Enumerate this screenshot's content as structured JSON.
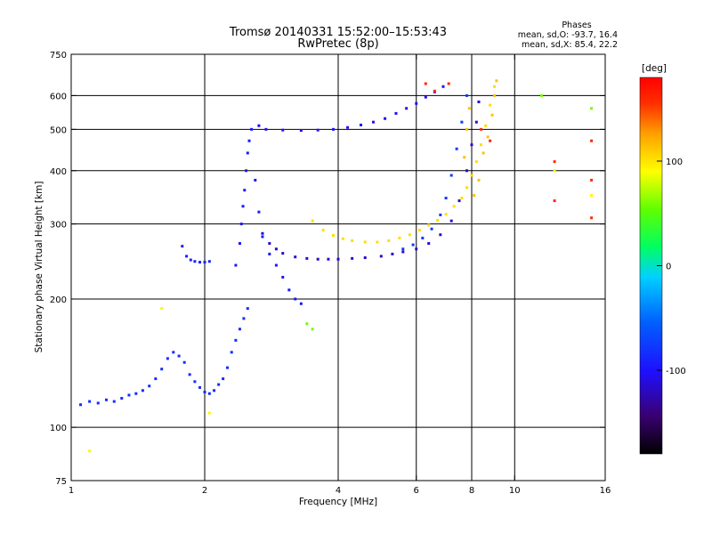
{
  "title_line1": "Tromsø 20140331 15:52:00–15:53:43",
  "title_line2": "RwPretec (8p)",
  "phase_info": {
    "heading": "Phases",
    "o_stats": "mean, sd,O: -93.7, 16.4",
    "x_stats": "mean, sd,X:  85.4, 22.2"
  },
  "chart_data": {
    "type": "scatter",
    "xlabel": "Frequency [MHz]",
    "ylabel": "Stationary phase Virtual Height [km]",
    "xscale": "log",
    "yscale": "log",
    "xlim": [
      1,
      16
    ],
    "ylim": [
      75,
      750
    ],
    "xticks": [
      1,
      2,
      4,
      6,
      8,
      10,
      16
    ],
    "yticks": [
      75,
      100,
      200,
      300,
      400,
      500,
      600,
      750
    ],
    "grid_x": [
      2,
      4,
      6,
      8,
      10
    ],
    "grid_y": [
      100,
      200,
      300,
      400,
      500,
      600
    ],
    "grid": true,
    "colorbar": {
      "label": "[deg]",
      "range": [
        -180,
        180
      ],
      "ticks": [
        100,
        0,
        -100
      ],
      "colors": [
        "#000000",
        "#3a0070",
        "#1e10ff",
        "#0060ff",
        "#00d0ff",
        "#00ff60",
        "#60ff00",
        "#ffff00",
        "#ffa000",
        "#ff3000",
        "#ff0000"
      ]
    },
    "series": [
      {
        "phase": -95,
        "points": [
          [
            1.05,
            113
          ],
          [
            1.1,
            115
          ],
          [
            1.15,
            114
          ],
          [
            1.2,
            116
          ],
          [
            1.25,
            115
          ],
          [
            1.3,
            117
          ],
          [
            1.35,
            119
          ],
          [
            1.4,
            120
          ],
          [
            1.45,
            122
          ],
          [
            1.5,
            125
          ],
          [
            1.55,
            130
          ],
          [
            1.6,
            137
          ],
          [
            1.65,
            145
          ],
          [
            1.7,
            150
          ],
          [
            1.75,
            147
          ],
          [
            1.8,
            142
          ],
          [
            1.85,
            133
          ],
          [
            1.9,
            128
          ],
          [
            1.95,
            124
          ],
          [
            2.0,
            121
          ],
          [
            2.05,
            120
          ],
          [
            2.1,
            122
          ],
          [
            2.15,
            126
          ],
          [
            2.2,
            130
          ],
          [
            2.25,
            138
          ],
          [
            2.3,
            150
          ],
          [
            2.35,
            160
          ],
          [
            2.4,
            170
          ],
          [
            2.45,
            180
          ],
          [
            2.5,
            190
          ]
        ]
      },
      {
        "phase": -100,
        "points": [
          [
            1.78,
            266
          ],
          [
            1.82,
            252
          ],
          [
            1.86,
            247
          ],
          [
            1.9,
            245
          ],
          [
            1.95,
            244
          ],
          [
            2.0,
            244
          ],
          [
            2.05,
            245
          ]
        ]
      },
      {
        "phase": -105,
        "points": [
          [
            2.35,
            240
          ],
          [
            2.4,
            270
          ],
          [
            2.42,
            300
          ],
          [
            2.44,
            330
          ],
          [
            2.46,
            360
          ],
          [
            2.48,
            400
          ],
          [
            2.5,
            440
          ],
          [
            2.52,
            470
          ],
          [
            2.55,
            500
          ],
          [
            2.6,
            380
          ],
          [
            2.65,
            320
          ],
          [
            2.7,
            280
          ],
          [
            2.8,
            255
          ],
          [
            2.9,
            240
          ],
          [
            3.0,
            225
          ],
          [
            3.1,
            210
          ],
          [
            3.2,
            200
          ],
          [
            3.3,
            195
          ]
        ]
      },
      {
        "phase": -120,
        "points": [
          [
            2.7,
            285
          ],
          [
            2.8,
            270
          ],
          [
            2.9,
            262
          ],
          [
            3.0,
            256
          ],
          [
            3.2,
            251
          ],
          [
            3.4,
            249
          ],
          [
            3.6,
            248
          ],
          [
            3.8,
            248
          ],
          [
            4.0,
            248
          ],
          [
            4.3,
            249
          ],
          [
            4.6,
            250
          ],
          [
            5.0,
            252
          ],
          [
            5.3,
            255
          ],
          [
            5.6,
            258
          ],
          [
            6.0,
            262
          ],
          [
            6.4,
            270
          ],
          [
            6.8,
            283
          ],
          [
            7.2,
            305
          ],
          [
            7.5,
            340
          ],
          [
            7.8,
            400
          ],
          [
            8.0,
            460
          ],
          [
            8.2,
            520
          ],
          [
            8.3,
            580
          ]
        ]
      },
      {
        "phase": -110,
        "points": [
          [
            2.65,
            510
          ],
          [
            2.75,
            500
          ],
          [
            3.0,
            498
          ],
          [
            3.3,
            497
          ],
          [
            3.6,
            498
          ],
          [
            3.9,
            500
          ],
          [
            4.2,
            505
          ],
          [
            4.5,
            512
          ],
          [
            4.8,
            520
          ],
          [
            5.1,
            530
          ],
          [
            5.4,
            545
          ],
          [
            5.7,
            560
          ],
          [
            6.0,
            575
          ],
          [
            6.3,
            595
          ],
          [
            6.6,
            612
          ],
          [
            6.9,
            630
          ]
        ]
      },
      {
        "phase": -90,
        "points": [
          [
            5.6,
            262
          ],
          [
            5.9,
            268
          ],
          [
            6.2,
            278
          ],
          [
            6.5,
            292
          ],
          [
            6.8,
            315
          ],
          [
            7.0,
            345
          ],
          [
            7.2,
            390
          ],
          [
            7.4,
            450
          ],
          [
            7.6,
            520
          ],
          [
            7.8,
            600
          ]
        ]
      },
      {
        "phase": 85,
        "points": [
          [
            3.5,
            305
          ],
          [
            3.7,
            290
          ],
          [
            3.9,
            282
          ],
          [
            4.1,
            277
          ],
          [
            4.3,
            274
          ],
          [
            4.6,
            272
          ],
          [
            4.9,
            272
          ],
          [
            5.2,
            274
          ],
          [
            5.5,
            278
          ],
          [
            5.8,
            283
          ],
          [
            6.1,
            290
          ],
          [
            6.4,
            298
          ],
          [
            6.7,
            306
          ],
          [
            7.0,
            316
          ],
          [
            7.3,
            330
          ],
          [
            7.6,
            345
          ],
          [
            7.8,
            365
          ],
          [
            8.0,
            390
          ],
          [
            8.2,
            420
          ],
          [
            8.4,
            460
          ],
          [
            8.6,
            510
          ],
          [
            8.8,
            570
          ],
          [
            9.0,
            630
          ]
        ]
      },
      {
        "phase": 95,
        "points": [
          [
            7.7,
            430
          ],
          [
            7.8,
            500
          ],
          [
            7.9,
            560
          ],
          [
            8.1,
            350
          ],
          [
            8.3,
            380
          ],
          [
            8.5,
            440
          ],
          [
            8.7,
            480
          ],
          [
            8.9,
            540
          ],
          [
            9.0,
            600
          ],
          [
            9.1,
            650
          ]
        ]
      },
      {
        "phase": 150,
        "points": [
          [
            6.3,
            640
          ],
          [
            6.6,
            615
          ],
          [
            7.1,
            640
          ],
          [
            8.4,
            500
          ],
          [
            8.8,
            470
          ],
          [
            12.3,
            340
          ],
          [
            12.3,
            420
          ],
          [
            14.9,
            470
          ],
          [
            14.9,
            380
          ],
          [
            14.9,
            310
          ]
        ]
      },
      {
        "phase": 40,
        "points": [
          [
            3.4,
            175
          ],
          [
            3.5,
            170
          ],
          [
            11.5,
            600
          ],
          [
            14.9,
            560
          ]
        ]
      },
      {
        "phase": 75,
        "points": [
          [
            1.1,
            88
          ],
          [
            1.6,
            190
          ],
          [
            2.05,
            108
          ],
          [
            12.3,
            400
          ],
          [
            14.9,
            350
          ]
        ]
      }
    ]
  }
}
